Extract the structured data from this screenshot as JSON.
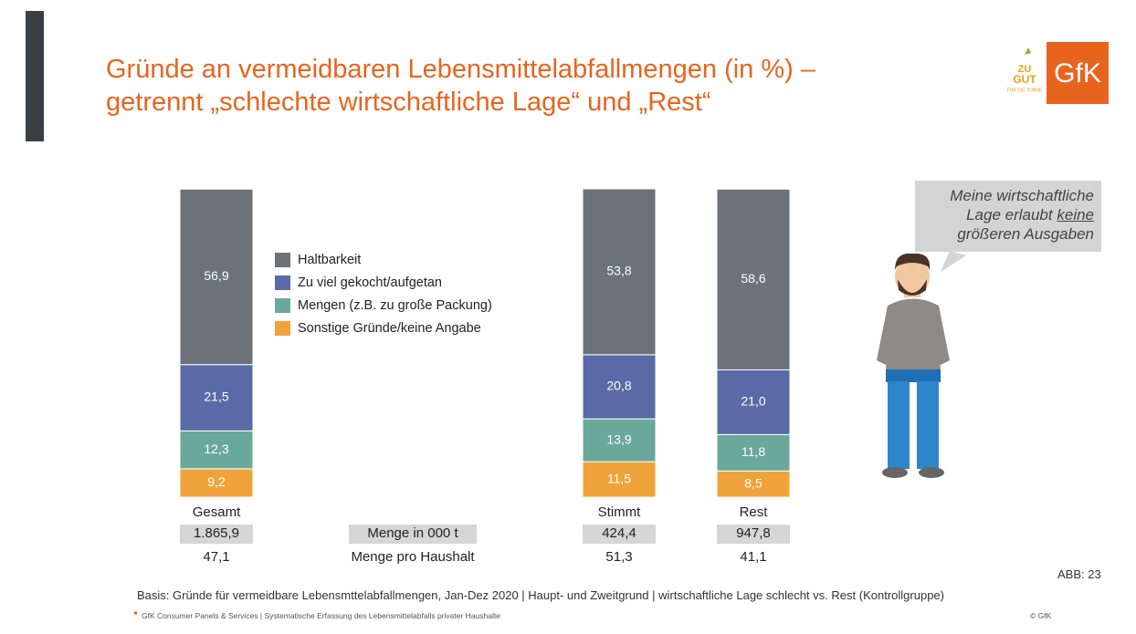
{
  "header": {
    "title_lines": [
      "Gründe an vermeidbaren Lebensmittelabfallmengen (in %) –",
      "getrennt „schlechte wirtschaftliche Lage“ und „Rest“"
    ],
    "logo": "GfK",
    "campaign_logo": [
      "ZU",
      "GUT",
      "FÜR DIE TONNE"
    ]
  },
  "chart_data": {
    "type": "bar",
    "stacked": true,
    "categories": [
      "Gesamt",
      "Stimmt",
      "Rest"
    ],
    "series": [
      {
        "name": "Haltbarkeit",
        "color": "#6b7378",
        "values": [
          56.9,
          53.8,
          58.6
        ],
        "value_labels": [
          "56,9",
          "53,8",
          "58,6"
        ]
      },
      {
        "name": "Zu viel gekocht/aufgetan",
        "color": "#5a6aa6",
        "values": [
          21.5,
          20.8,
          21.0
        ],
        "value_labels": [
          "21,5",
          "20,8",
          "21,0"
        ]
      },
      {
        "name": "Mengen (z.B. zu große Packung)",
        "color": "#6aa89b",
        "values": [
          12.3,
          13.9,
          11.8
        ],
        "value_labels": [
          "12,3",
          "13,9",
          "11,8"
        ]
      },
      {
        "name": "Sonstige Gründe/keine Angabe",
        "color": "#f0a33a",
        "values": [
          9.2,
          11.5,
          8.5
        ],
        "value_labels": [
          "9,2",
          "11,5",
          "8,5"
        ]
      }
    ]
  },
  "table": {
    "rows": [
      {
        "label": "Menge in 000 t",
        "cells": [
          "1.865,9",
          "424,4",
          "947,8"
        ]
      },
      {
        "label": "Menge pro Haushalt",
        "cells": [
          "47,1",
          "51,3",
          "41,1"
        ]
      }
    ]
  },
  "speech_bubble": {
    "line1": "Meine wirtschaftliche",
    "line2": "Lage erlaubt",
    "line2_emphasis": "keine",
    "line3": "größeren Ausgaben"
  },
  "footer": {
    "figure": "ABB: 23",
    "basis": "Basis: Gründe für vermeidbare Lebensmttelabfallmengen, Jan-Dez 2020 | Haupt- und Zweitgrund | wirtschaftliche Lage schlecht vs. Rest (Kontrollgruppe)",
    "source": "GfK Consumer Panels & Services | Systematische Erfassung des Lebensmittelabfalls privater Haushalte",
    "copyright": "© GfK"
  }
}
